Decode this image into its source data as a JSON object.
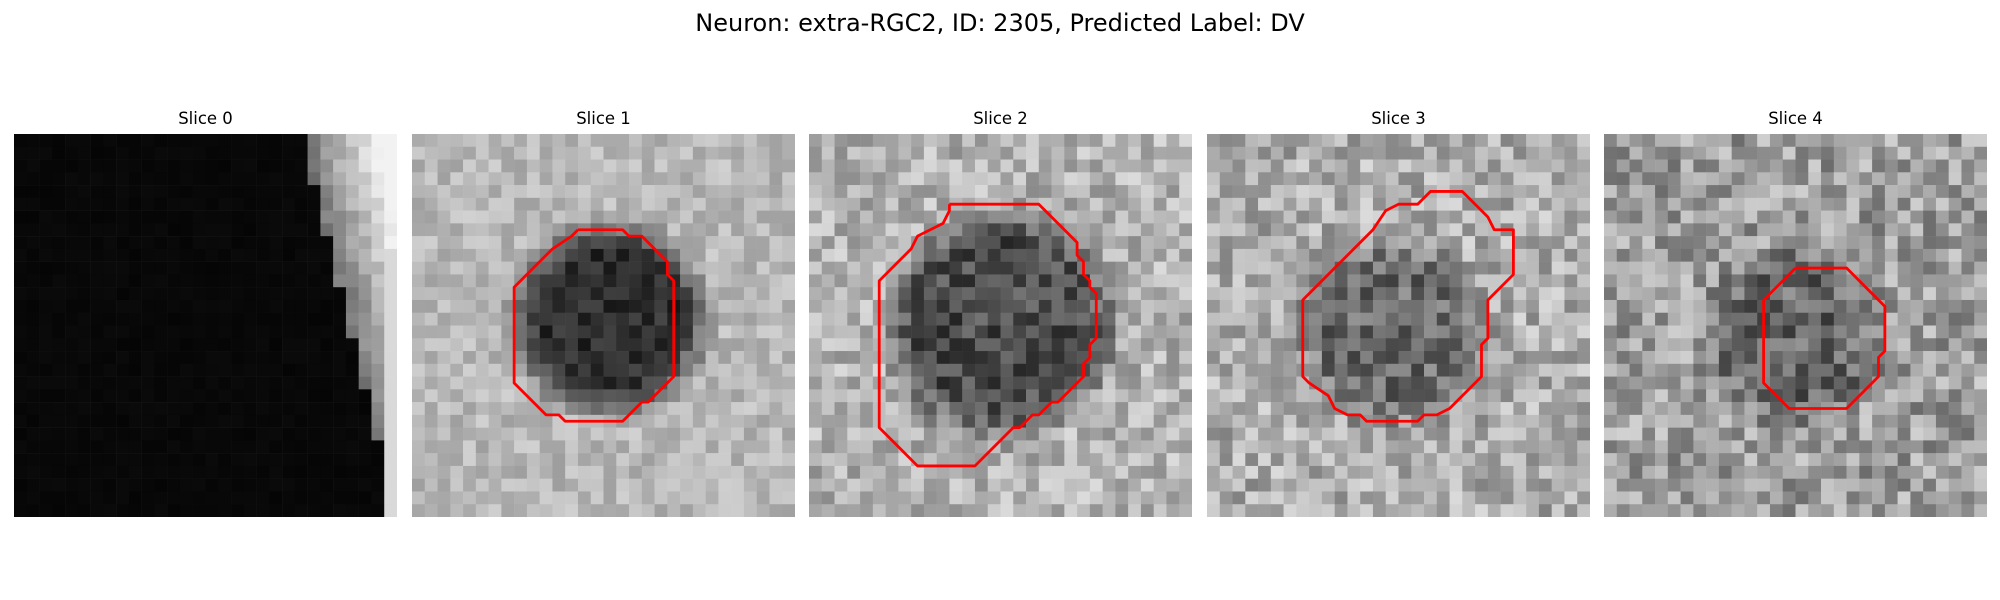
{
  "figure": {
    "title": "Neuron: extra-RGC2, ID: 2305, Predicted Label: DV",
    "outline_color": "#ff0000",
    "colormap": "gray"
  },
  "panels": [
    {
      "title": "Slice 0",
      "style": "edge",
      "seed": 11,
      "contour": []
    },
    {
      "title": "Slice 1",
      "style": "ring",
      "seed": 23,
      "cx": 15.5,
      "cy": 14.5,
      "r": 7.0,
      "dark": 0.18,
      "bg": 0.72,
      "noise": 0.1,
      "contour": [
        [
          13,
          7.5
        ],
        [
          16.5,
          7.5
        ],
        [
          17,
          8
        ],
        [
          18,
          8
        ],
        [
          19.5,
          9.5
        ],
        [
          20,
          10
        ],
        [
          20,
          11
        ],
        [
          20.5,
          11.5
        ],
        [
          20.5,
          19
        ],
        [
          19.5,
          20
        ],
        [
          19,
          20.5
        ],
        [
          18.5,
          21
        ],
        [
          18,
          21
        ],
        [
          17.5,
          21.5
        ],
        [
          17,
          22
        ],
        [
          16.5,
          22.5
        ],
        [
          12,
          22.5
        ],
        [
          11.5,
          22
        ],
        [
          10.5,
          22
        ],
        [
          10,
          21.5
        ],
        [
          9.5,
          21
        ],
        [
          9,
          20.5
        ],
        [
          8,
          19.5
        ],
        [
          8,
          12
        ],
        [
          9.5,
          10.5
        ],
        [
          10,
          10
        ],
        [
          11,
          9
        ],
        [
          12.5,
          8
        ],
        [
          13,
          7.5
        ]
      ]
    },
    {
      "title": "Slice 2",
      "style": "ring",
      "seed": 37,
      "cx": 15,
      "cy": 15,
      "r": 8.5,
      "dark": 0.3,
      "bg": 0.7,
      "noise": 0.16,
      "contour": [
        [
          11,
          5.5
        ],
        [
          12.5,
          5.5
        ],
        [
          12.5,
          5.5
        ],
        [
          18,
          5.5
        ],
        [
          18.5,
          6
        ],
        [
          19,
          6.5
        ],
        [
          19.5,
          7
        ],
        [
          20,
          7.5
        ],
        [
          20.5,
          8
        ],
        [
          21,
          8.5
        ],
        [
          21,
          9.5
        ],
        [
          21.5,
          10
        ],
        [
          21.5,
          11
        ],
        [
          22,
          11.5
        ],
        [
          22,
          12
        ],
        [
          22.5,
          12.5
        ],
        [
          22.5,
          16
        ],
        [
          22,
          16.5
        ],
        [
          22,
          17.5
        ],
        [
          21.5,
          18
        ],
        [
          21.5,
          19
        ],
        [
          20.5,
          20
        ],
        [
          20,
          20.5
        ],
        [
          19.5,
          21
        ],
        [
          19,
          21
        ],
        [
          18.5,
          21.5
        ],
        [
          18,
          22
        ],
        [
          17.5,
          22
        ],
        [
          17,
          22.5
        ],
        [
          16.5,
          23
        ],
        [
          16,
          23
        ],
        [
          14,
          25
        ],
        [
          13,
          26
        ],
        [
          8.5,
          26
        ],
        [
          5.5,
          23
        ],
        [
          5.5,
          11.5
        ],
        [
          7,
          10
        ],
        [
          8,
          9
        ],
        [
          8.5,
          8
        ],
        [
          10.5,
          7
        ],
        [
          11,
          6
        ],
        [
          11,
          5.5
        ]
      ]
    },
    {
      "title": "Slice 3",
      "style": "ring",
      "seed": 53,
      "cx": 14.5,
      "cy": 15.5,
      "r": 7.0,
      "dark": 0.42,
      "bg": 0.68,
      "noise": 0.18,
      "contour": [
        [
          18,
          4.5
        ],
        [
          20,
          4.5
        ],
        [
          21.5,
          6
        ],
        [
          22,
          6.5
        ],
        [
          22.5,
          7.5
        ],
        [
          24,
          7.5
        ],
        [
          24,
          11
        ],
        [
          22,
          13
        ],
        [
          22,
          16
        ],
        [
          21.5,
          16.5
        ],
        [
          21.5,
          19
        ],
        [
          20.5,
          20
        ],
        [
          19,
          21.5
        ],
        [
          18,
          22
        ],
        [
          17,
          22
        ],
        [
          16.5,
          22.5
        ],
        [
          12.5,
          22.5
        ],
        [
          12,
          22
        ],
        [
          11,
          22
        ],
        [
          10,
          21.5
        ],
        [
          9.5,
          20.5
        ],
        [
          8,
          19.5
        ],
        [
          7.5,
          19
        ],
        [
          7.5,
          13
        ],
        [
          8,
          12.5
        ],
        [
          12.5,
          8
        ],
        [
          13,
          7.5
        ],
        [
          14,
          6
        ],
        [
          15,
          5.5
        ],
        [
          16.5,
          5.5
        ],
        [
          17.5,
          4.5
        ],
        [
          18,
          4.5
        ]
      ]
    },
    {
      "title": "Slice 4",
      "style": "ring",
      "seed": 71,
      "cx": 15,
      "cy": 16,
      "r": 6.5,
      "dark": 0.4,
      "bg": 0.62,
      "noise": 0.2,
      "contour": [
        [
          15,
          10.5
        ],
        [
          19,
          10.5
        ],
        [
          20.5,
          12
        ],
        [
          22,
          13.5
        ],
        [
          22,
          17
        ],
        [
          21.5,
          17.5
        ],
        [
          21.5,
          19
        ],
        [
          20.5,
          20
        ],
        [
          19,
          21.5
        ],
        [
          14.5,
          21.5
        ],
        [
          13.5,
          20.5
        ],
        [
          12.5,
          19.5
        ],
        [
          12.5,
          13
        ],
        [
          14,
          11.5
        ],
        [
          15,
          10.5
        ]
      ]
    }
  ]
}
